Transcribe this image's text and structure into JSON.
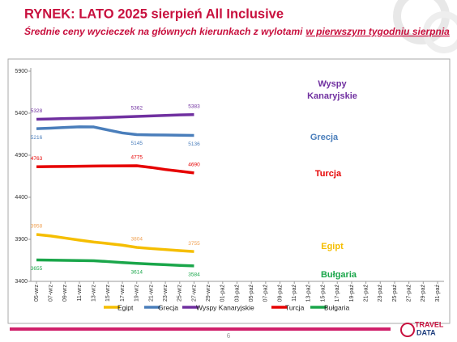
{
  "header": {
    "title": "RYNEK: LATO 2025 sierpień All Inclusive",
    "subtitle": {
      "text": "Średnie ceny wycieczek na głównych kierunkach z wylotami",
      "underlined": "w pierwszym tygodniu sierpnia"
    }
  },
  "chart_data": {
    "type": "line",
    "categories": [
      "05-wrz",
      "07-wrz",
      "09-wrz",
      "11-wrz",
      "13-wrz",
      "15-wrz",
      "17-wrz",
      "19-wrz",
      "21-wrz",
      "23-wrz",
      "25-wrz",
      "27-wrz",
      "29-wrz",
      "01-paź",
      "03-paź",
      "05-paź",
      "07-paź",
      "09-paź",
      "11-paź",
      "13-paź",
      "15-paź",
      "17-paź",
      "19-paź",
      "21-paź",
      "23-paź",
      "25-paź",
      "27-paź",
      "29-paź",
      "31-paź"
    ],
    "series": [
      {
        "name": "Egipt",
        "color": "#f5be00",
        "label_color": "#f0a050",
        "values": [
          3958,
          3940,
          3915,
          3890,
          3868,
          3850,
          3830,
          3804,
          3790,
          3778,
          3765,
          3755,
          null,
          null,
          null,
          null,
          null,
          null,
          null,
          null,
          null,
          null,
          null,
          null,
          null,
          null,
          null,
          null,
          null
        ],
        "value_labels": [
          "3958",
          null,
          null,
          null,
          null,
          null,
          null,
          "3804",
          null,
          null,
          null,
          "3755",
          null,
          null,
          null,
          null,
          null,
          null,
          null,
          null,
          null,
          null,
          null,
          null,
          null,
          null,
          null,
          null,
          null
        ]
      },
      {
        "name": "Grecja",
        "color": "#4a7ebb",
        "label_color": "#4a7ebb",
        "values": [
          5216,
          5222,
          5230,
          5238,
          5236,
          5200,
          5165,
          5145,
          5142,
          5140,
          5138,
          5136,
          null,
          null,
          null,
          null,
          null,
          null,
          null,
          null,
          null,
          null,
          null,
          null,
          null,
          null,
          null,
          null,
          null
        ],
        "value_labels": [
          "5216",
          null,
          null,
          null,
          null,
          null,
          null,
          "5145",
          null,
          null,
          null,
          "5136",
          null,
          null,
          null,
          null,
          null,
          null,
          null,
          null,
          null,
          null,
          null,
          null,
          null,
          null,
          null,
          null,
          null
        ]
      },
      {
        "name": "Wyspy Kanaryjskie",
        "color": "#7030a0",
        "label_color": "#7030a0",
        "values": [
          5328,
          5332,
          5336,
          5340,
          5344,
          5350,
          5356,
          5362,
          5368,
          5374,
          5379,
          5383,
          null,
          null,
          null,
          null,
          null,
          null,
          null,
          null,
          null,
          null,
          null,
          null,
          null,
          null,
          null,
          null,
          null
        ],
        "value_labels": [
          "5328",
          null,
          null,
          null,
          null,
          null,
          null,
          "5362",
          null,
          null,
          null,
          "5383",
          null,
          null,
          null,
          null,
          null,
          null,
          null,
          null,
          null,
          null,
          null,
          null,
          null,
          null,
          null,
          null,
          null
        ]
      },
      {
        "name": "Turcja",
        "color": "#e60000",
        "label_color": "#e60000",
        "values": [
          4763,
          4765,
          4767,
          4769,
          4771,
          4773,
          4774,
          4775,
          4755,
          4730,
          4710,
          4690,
          null,
          null,
          null,
          null,
          null,
          null,
          null,
          null,
          null,
          null,
          null,
          null,
          null,
          null,
          null,
          null,
          null
        ],
        "value_labels": [
          "4763",
          null,
          null,
          null,
          null,
          null,
          null,
          "4775",
          null,
          null,
          null,
          "4690",
          null,
          null,
          null,
          null,
          null,
          null,
          null,
          null,
          null,
          null,
          null,
          null,
          null,
          null,
          null,
          null,
          null
        ]
      },
      {
        "name": "Bułgaria",
        "color": "#1aa64a",
        "label_color": "#1aa64a",
        "values": [
          3655,
          3652,
          3650,
          3648,
          3645,
          3635,
          3624,
          3614,
          3606,
          3598,
          3590,
          3584,
          null,
          null,
          null,
          null,
          null,
          null,
          null,
          null,
          null,
          null,
          null,
          null,
          null,
          null,
          null,
          null,
          null
        ],
        "value_labels": [
          "3655",
          null,
          null,
          null,
          null,
          null,
          null,
          "3614",
          null,
          null,
          null,
          "3584",
          null,
          null,
          null,
          null,
          null,
          null,
          null,
          null,
          null,
          null,
          null,
          null,
          null,
          null,
          null,
          null,
          null
        ]
      }
    ],
    "annotations": [
      {
        "lines": [
          "Wyspy",
          "Kanaryjskie"
        ],
        "color": "#7030a0"
      },
      {
        "lines": [
          "Grecja"
        ],
        "color": "#4a7ebb"
      },
      {
        "lines": [
          "Turcja"
        ],
        "color": "#e60000"
      },
      {
        "lines": [
          "Egipt"
        ],
        "color": "#f5be00"
      },
      {
        "lines": [
          "Bułgaria"
        ],
        "color": "#1aa64a"
      }
    ],
    "ylim": [
      3400,
      5900
    ],
    "yticks": [
      3400,
      3900,
      4400,
      4900,
      5400,
      5900
    ],
    "grid": false,
    "legend": "bottom"
  },
  "footer": {
    "page_number": "6",
    "logo": [
      "TRAVEL",
      "DATA"
    ]
  }
}
